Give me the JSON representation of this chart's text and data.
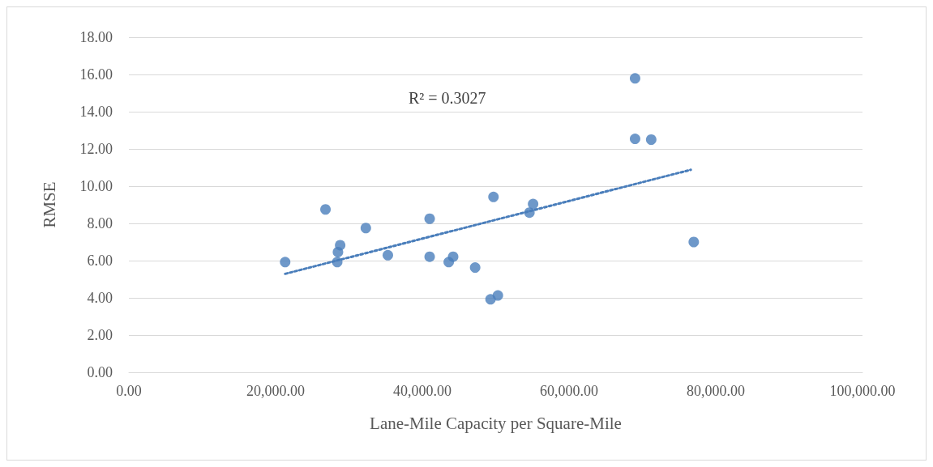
{
  "chart_data": {
    "type": "scatter",
    "xlabel": "Lane-Mile Capacity per Square-Mile",
    "ylabel": "RMSE",
    "annotations": [
      "R² = 0.3027"
    ],
    "xlim": [
      0,
      100000
    ],
    "xticks": [
      {
        "value": 0,
        "label": "0.00"
      },
      {
        "value": 20000,
        "label": "20,000.00"
      },
      {
        "value": 40000,
        "label": "40,000.00"
      },
      {
        "value": 60000,
        "label": "60,000.00"
      },
      {
        "value": 80000,
        "label": "80,000.00"
      },
      {
        "value": 100000,
        "label": "100,000.00"
      }
    ],
    "ylim": [
      0,
      18
    ],
    "yticks": [
      {
        "value": 0,
        "label": "0.00"
      },
      {
        "value": 2,
        "label": "2.00"
      },
      {
        "value": 4,
        "label": "4.00"
      },
      {
        "value": 6,
        "label": "6.00"
      },
      {
        "value": 8,
        "label": "8.00"
      },
      {
        "value": 10,
        "label": "10.00"
      },
      {
        "value": 12,
        "label": "12.00"
      },
      {
        "value": 14,
        "label": "14.00"
      },
      {
        "value": 16,
        "label": "16.00"
      },
      {
        "value": 18,
        "label": "18.00"
      }
    ],
    "grid": "y",
    "series": [
      {
        "marker": "circle",
        "color": "#4a7ebb",
        "x": [
          21300,
          26800,
          28500,
          28400,
          28800,
          32300,
          35300,
          41000,
          41000,
          43600,
          44200,
          47200,
          49700,
          49300,
          50300,
          54600,
          55100,
          69000,
          69000,
          71200,
          77000
        ],
        "values": [
          5.92,
          8.75,
          6.46,
          5.92,
          6.83,
          7.75,
          6.29,
          8.25,
          6.21,
          5.92,
          6.21,
          5.63,
          9.42,
          3.92,
          4.13,
          8.58,
          9.04,
          15.79,
          12.54,
          12.5,
          7.0
        ]
      },
      {
        "type": "line",
        "marker": "none",
        "color": "#4a7ebb",
        "line_style": "dotted",
        "x": [
          21300,
          76600
        ],
        "values": [
          5.29,
          10.88
        ]
      }
    ]
  }
}
